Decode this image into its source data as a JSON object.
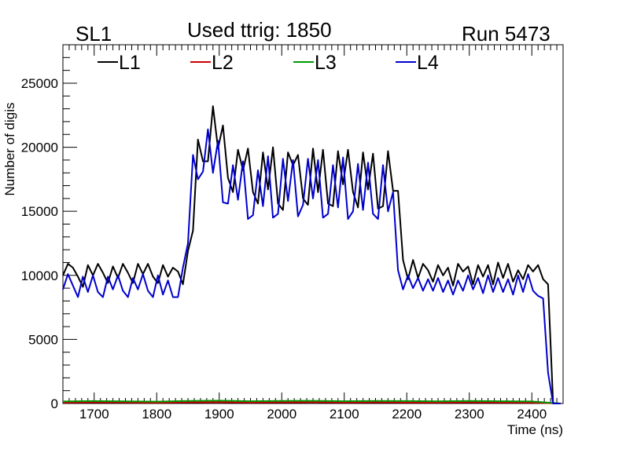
{
  "header": {
    "left_label": "SL1",
    "center_label": "Used ttrig: 1850",
    "right_label": "Run 5473"
  },
  "chart_data": {
    "type": "line",
    "title": "Used ttrig: 1850",
    "xlabel": "Time (ns)",
    "ylabel": "Number of digis",
    "xlim": [
      1650,
      2450
    ],
    "ylim": [
      0,
      28000
    ],
    "x_ticks": [
      "1700",
      "1800",
      "1900",
      "2000",
      "2100",
      "2200",
      "2300",
      "2400"
    ],
    "y_ticks": [
      "0",
      "5000",
      "10000",
      "15000",
      "20000",
      "25000"
    ],
    "x_tick_values": [
      1700,
      1800,
      1900,
      2000,
      2100,
      2200,
      2300,
      2400
    ],
    "y_tick_values": [
      0,
      5000,
      10000,
      15000,
      20000,
      25000
    ],
    "legend_position": "top, horizontal",
    "series": [
      {
        "name": "L1",
        "color": "#000000",
        "x": [
          1650,
          1658,
          1666,
          1674,
          1682,
          1690,
          1698,
          1706,
          1714,
          1722,
          1730,
          1738,
          1746,
          1754,
          1762,
          1770,
          1778,
          1786,
          1794,
          1802,
          1810,
          1818,
          1826,
          1834,
          1842,
          1850,
          1858,
          1866,
          1874,
          1882,
          1890,
          1898,
          1906,
          1914,
          1922,
          1930,
          1938,
          1946,
          1954,
          1962,
          1970,
          1978,
          1986,
          1994,
          2002,
          2010,
          2018,
          2026,
          2034,
          2042,
          2050,
          2058,
          2066,
          2074,
          2082,
          2090,
          2098,
          2106,
          2114,
          2122,
          2130,
          2138,
          2146,
          2154,
          2162,
          2170,
          2178,
          2186,
          2194,
          2202,
          2210,
          2218,
          2226,
          2234,
          2242,
          2250,
          2258,
          2266,
          2274,
          2282,
          2290,
          2298,
          2306,
          2314,
          2322,
          2330,
          2338,
          2346,
          2354,
          2362,
          2370,
          2378,
          2386,
          2394,
          2402,
          2410,
          2418,
          2426,
          2434,
          2442,
          2446
        ],
        "y": [
          10000,
          10900,
          10600,
          9900,
          9100,
          10800,
          10000,
          10900,
          10200,
          9400,
          10700,
          9800,
          10900,
          10200,
          9400,
          10900,
          10100,
          10900,
          9900,
          9400,
          10800,
          9900,
          10600,
          10300,
          9300,
          11900,
          13500,
          20600,
          18900,
          18900,
          23200,
          19900,
          21700,
          17600,
          16500,
          19800,
          18200,
          19900,
          16500,
          15600,
          19600,
          16700,
          20000,
          15600,
          15100,
          19600,
          18600,
          19400,
          16000,
          15500,
          19900,
          16500,
          19800,
          15600,
          15400,
          19700,
          17100,
          19800,
          16500,
          15300,
          19600,
          16700,
          19500,
          15200,
          15400,
          19700,
          16600,
          16600,
          11200,
          9700,
          11200,
          9800,
          10900,
          10400,
          9500,
          10800,
          10000,
          10600,
          9200,
          10900,
          10300,
          10700,
          9300,
          10800,
          9900,
          10800,
          9300,
          11000,
          9800,
          10900,
          9500,
          10400,
          9700,
          10800,
          10300,
          10800,
          9700,
          9300,
          0,
          0,
          0
        ]
      },
      {
        "name": "L2",
        "color": "#cc0000",
        "x": [
          1650,
          1700,
          1750,
          1800,
          1850,
          1900,
          1950,
          2000,
          2050,
          2100,
          2150,
          2200,
          2250,
          2300,
          2350,
          2400,
          2445
        ],
        "y": [
          70,
          90,
          80,
          60,
          90,
          100,
          80,
          90,
          100,
          80,
          90,
          80,
          70,
          90,
          80,
          70,
          0
        ]
      },
      {
        "name": "L3",
        "color": "#009900",
        "x": [
          1650,
          1700,
          1750,
          1800,
          1850,
          1900,
          1950,
          2000,
          2050,
          2100,
          2150,
          2200,
          2250,
          2300,
          2350,
          2400,
          2445
        ],
        "y": [
          160,
          190,
          170,
          150,
          200,
          220,
          180,
          200,
          210,
          180,
          200,
          190,
          170,
          200,
          180,
          160,
          0
        ]
      },
      {
        "name": "L4",
        "color": "#0000cc",
        "x": [
          1650,
          1658,
          1666,
          1674,
          1682,
          1690,
          1698,
          1706,
          1714,
          1722,
          1730,
          1738,
          1746,
          1754,
          1762,
          1770,
          1778,
          1786,
          1794,
          1802,
          1810,
          1818,
          1826,
          1834,
          1842,
          1850,
          1858,
          1866,
          1874,
          1882,
          1890,
          1898,
          1906,
          1914,
          1922,
          1930,
          1938,
          1946,
          1954,
          1962,
          1970,
          1978,
          1986,
          1994,
          2002,
          2010,
          2018,
          2026,
          2034,
          2042,
          2050,
          2058,
          2066,
          2074,
          2082,
          2090,
          2098,
          2106,
          2114,
          2122,
          2130,
          2138,
          2146,
          2154,
          2162,
          2170,
          2178,
          2186,
          2194,
          2202,
          2210,
          2218,
          2226,
          2234,
          2242,
          2250,
          2258,
          2266,
          2274,
          2282,
          2290,
          2298,
          2306,
          2314,
          2322,
          2330,
          2338,
          2346,
          2354,
          2362,
          2370,
          2378,
          2386,
          2394,
          2402,
          2410,
          2418,
          2426,
          2434,
          2442,
          2446
        ],
        "y": [
          8900,
          10100,
          9200,
          8300,
          9900,
          8700,
          10000,
          8700,
          8300,
          9900,
          8900,
          10000,
          8800,
          8300,
          9800,
          8900,
          10100,
          8800,
          8300,
          10000,
          8500,
          9600,
          8300,
          8300,
          10600,
          12500,
          19400,
          17500,
          18100,
          21400,
          18000,
          20500,
          15700,
          15600,
          18600,
          15900,
          18900,
          14400,
          14700,
          18200,
          15400,
          19300,
          14500,
          14800,
          19100,
          15800,
          19000,
          14600,
          15500,
          19100,
          16000,
          19000,
          14500,
          14800,
          18600,
          15300,
          19200,
          14400,
          15000,
          18700,
          15100,
          18800,
          14800,
          14400,
          18600,
          15000,
          16500,
          10400,
          8900,
          10000,
          9000,
          9800,
          8800,
          9700,
          8800,
          9800,
          8700,
          9600,
          8500,
          9600,
          8800,
          10000,
          8900,
          9800,
          8600,
          10000,
          8700,
          9800,
          8700,
          9700,
          8500,
          10000,
          8700,
          10100,
          8800,
          8400,
          8200,
          2400,
          0,
          0,
          0
        ]
      }
    ]
  }
}
